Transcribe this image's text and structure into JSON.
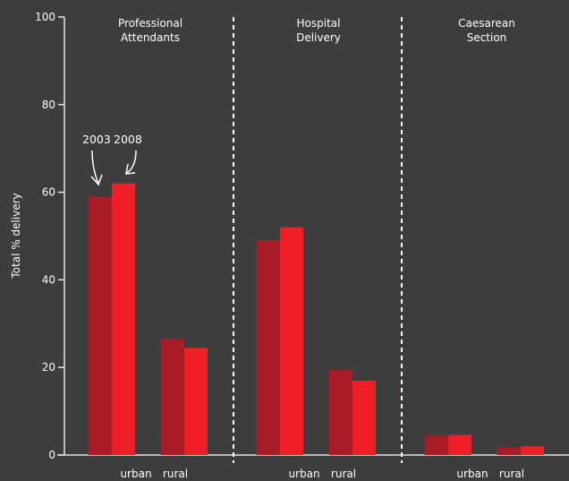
{
  "colors": {
    "background": "#3d3d3d",
    "series_2003": "#a81c26",
    "series_2008": "#ee1f26",
    "axis": "#ffffff"
  },
  "chart_data": {
    "type": "bar",
    "ylabel": "Total % delivery",
    "ylim": [
      0,
      100
    ],
    "yticks": [
      0,
      20,
      40,
      60,
      80,
      100
    ],
    "grid": false,
    "legend": "annotation arrows pointing at the first two bars",
    "panels": [
      {
        "title": [
          "Professional",
          "Attendants"
        ]
      },
      {
        "title": [
          "Hospital",
          "Delivery"
        ]
      },
      {
        "title": [
          "Caesarean",
          "Section"
        ]
      }
    ],
    "categories": [
      "urban",
      "rural"
    ],
    "series": [
      {
        "name": "2003",
        "values": [
          [
            59,
            26.5
          ],
          [
            49,
            19.5
          ],
          [
            4.5,
            1.8
          ]
        ]
      },
      {
        "name": "2008",
        "values": [
          [
            62,
            24.5
          ],
          [
            52,
            17
          ],
          [
            4.6,
            2
          ]
        ]
      }
    ],
    "annotation": [
      "2003",
      "2008"
    ]
  }
}
